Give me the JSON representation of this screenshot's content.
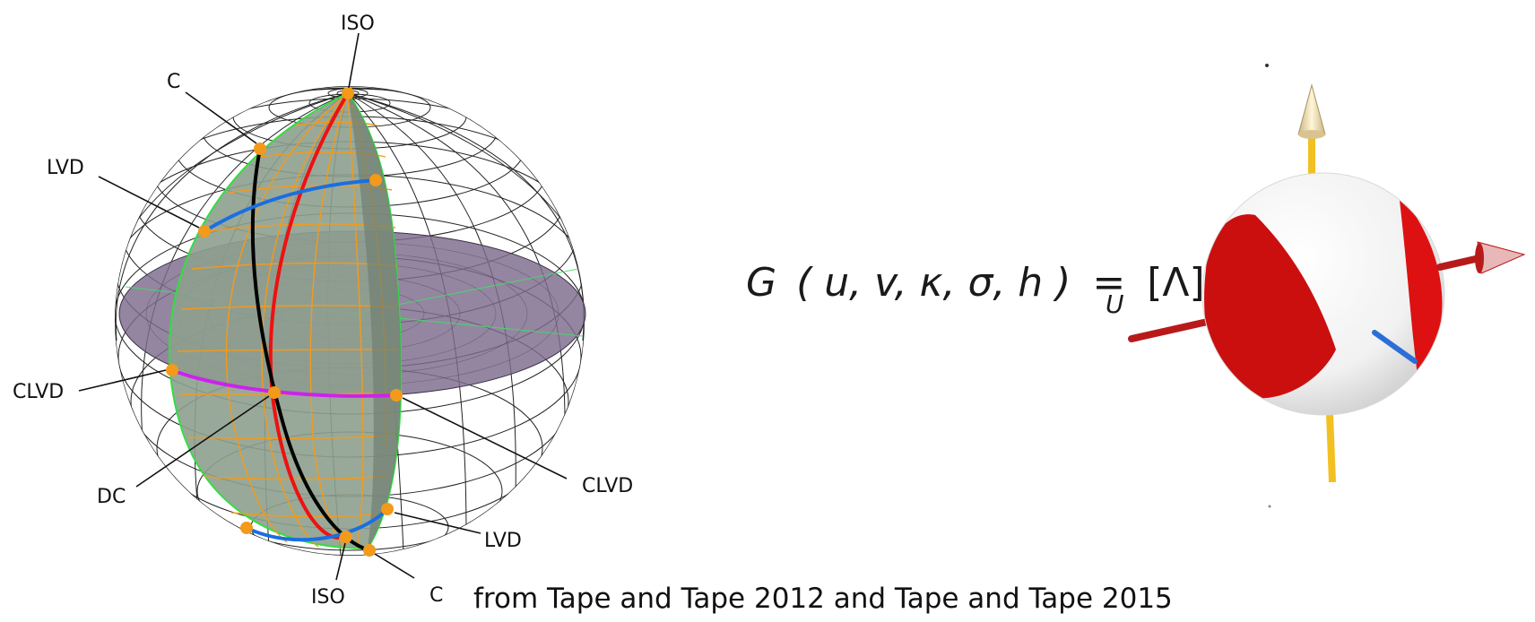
{
  "labels": {
    "iso_top": "ISO",
    "c_top": "C",
    "lvd_top": "LVD",
    "clvd_left": "CLVD",
    "dc": "DC",
    "clvd_right": "CLVD",
    "lvd_bottom": "LVD",
    "iso_bottom": "ISO",
    "c_bottom": "C"
  },
  "formula": {
    "lhs_func": "G",
    "args": "( u, v, κ, σ, h )",
    "eq": "=",
    "rhs": "[Λ]",
    "subscript": "U"
  },
  "caption": "from Tape and Tape 2012 and Tape and Tape 2015",
  "colors": {
    "lune_fill": "#8ea08e",
    "lune_grid": "#f39a1a",
    "lune_edge": "#33dd44",
    "disk_fill": "#7d6b8c",
    "marker": "#f39a1a",
    "red_arc": "#ee1111",
    "black_arc": "#000000",
    "blue_arc": "#1a6fe0",
    "magenta_arc": "#cc22ee",
    "beachball_red": "#dd1111",
    "arrow_yellow": "#f2c020",
    "arrow_red": "#b81a1a",
    "arrow_blue": "#2b6fd6"
  }
}
